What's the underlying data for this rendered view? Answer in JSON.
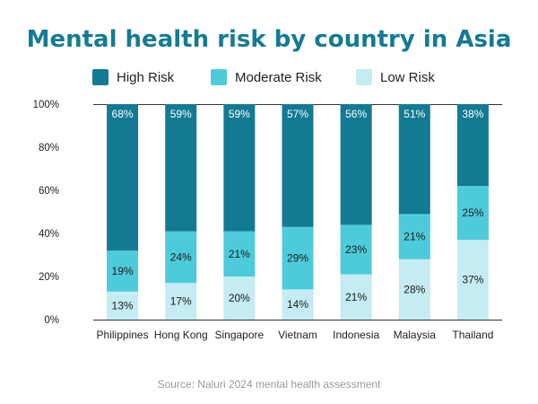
{
  "chart_data": {
    "type": "bar",
    "stacked": true,
    "title": "Mental health risk by country in Asia",
    "categories": [
      "Philippines",
      "Hong Kong",
      "Singapore",
      "Vietnam",
      "Indonesia",
      "Malaysia",
      "Thailand"
    ],
    "series": [
      {
        "name": "Low Risk",
        "color": "#c4ecf2",
        "values": [
          13,
          17,
          20,
          14,
          21,
          28,
          37
        ]
      },
      {
        "name": "Moderate Risk",
        "color": "#4ecbdb",
        "values": [
          19,
          24,
          21,
          29,
          23,
          21,
          25
        ]
      },
      {
        "name": "High Risk",
        "color": "#137a94",
        "values": [
          68,
          59,
          59,
          57,
          56,
          51,
          38
        ]
      }
    ],
    "legend_order": [
      "High Risk",
      "Moderate Risk",
      "Low Risk"
    ],
    "legend_placement": "top",
    "ylim": [
      0,
      100
    ],
    "yticks": [
      "0%",
      "20%",
      "40%",
      "60%",
      "80%",
      "100%"
    ],
    "value_suffix": "%",
    "source": "Source: Naluri 2024 mental health assessment"
  },
  "colors": {
    "title": "#157b94",
    "axis_line": "#333333",
    "tick_text": "#222222",
    "label_dark": "#1a1a1a",
    "label_light": "#ffffff",
    "source_text": "#999999"
  }
}
